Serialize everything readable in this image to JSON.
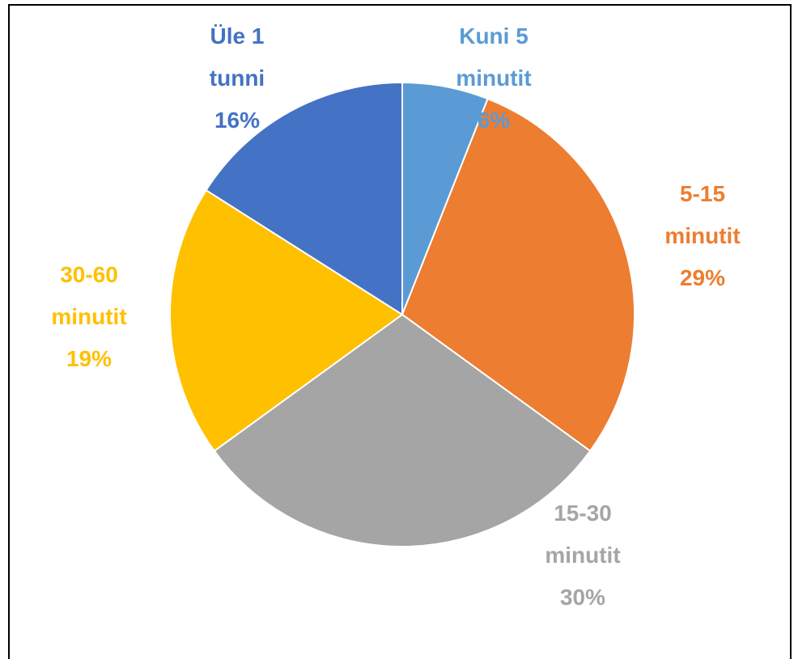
{
  "chart_data": {
    "type": "pie",
    "categories": [
      "Kuni 5 minutit",
      "5-15 minutit",
      "15-30 minutit",
      "30-60 minutit",
      "Üle 1 tunni"
    ],
    "values": [
      6,
      29,
      30,
      19,
      16
    ],
    "value_labels": [
      "6%",
      "29%",
      "30%",
      "19%",
      "16%"
    ],
    "colors": [
      "#5b9bd5",
      "#ed7d31",
      "#a5a5a5",
      "#ffc000",
      "#4472c4"
    ]
  }
}
